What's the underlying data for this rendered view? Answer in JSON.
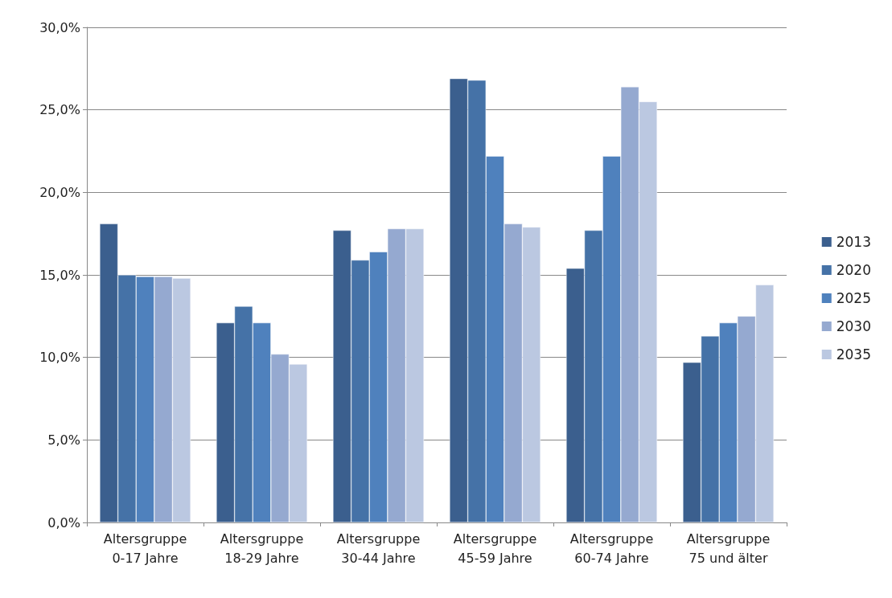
{
  "chart_data": {
    "type": "bar",
    "categories": [
      "Altersgruppe\n0-17 Jahre",
      "Altersgruppe\n18-29 Jahre",
      "Altersgruppe\n30-44 Jahre",
      "Altersgruppe\n45-59 Jahre",
      "Altersgruppe\n60-74 Jahre",
      "Altersgruppe\n75 und älter"
    ],
    "series": [
      {
        "name": "2013",
        "color": "#3b5f8e",
        "values": [
          18.1,
          12.1,
          17.7,
          26.9,
          15.4,
          9.7
        ]
      },
      {
        "name": "2020",
        "color": "#4572a7",
        "values": [
          15.0,
          13.1,
          15.9,
          26.8,
          17.7,
          11.3
        ]
      },
      {
        "name": "2025",
        "color": "#4f81bd",
        "values": [
          14.9,
          12.1,
          16.4,
          22.2,
          22.2,
          12.1
        ]
      },
      {
        "name": "2030",
        "color": "#95a9d0",
        "values": [
          14.9,
          10.2,
          17.8,
          18.1,
          26.4,
          12.5
        ]
      },
      {
        "name": "2035",
        "color": "#bbc8e1",
        "values": [
          14.8,
          9.6,
          17.8,
          17.9,
          25.5,
          14.4
        ]
      }
    ],
    "ylim": [
      0,
      30
    ],
    "yticks": [
      {
        "value": 0,
        "label": "0,0%"
      },
      {
        "value": 5,
        "label": "5,0%"
      },
      {
        "value": 10,
        "label": "10,0%"
      },
      {
        "value": 15,
        "label": "15,0%"
      },
      {
        "value": 20,
        "label": "20,0%"
      },
      {
        "value": 25,
        "label": "25,0%"
      },
      {
        "value": 30,
        "label": "30,0%"
      }
    ],
    "grid": "y",
    "legend": "right"
  }
}
